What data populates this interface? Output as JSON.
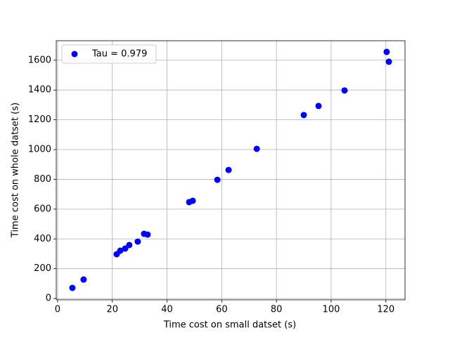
{
  "chart_data": {
    "type": "scatter",
    "xlabel": "Time cost on small datset (s)",
    "ylabel": "Time cost on whole datset (s)",
    "series": [
      {
        "name": "Tau = 0.979",
        "color": "#0000ff",
        "x": [
          5.4,
          9.5,
          21.6,
          22.9,
          24.7,
          26.2,
          29.3,
          31.6,
          32.9,
          48.1,
          49.4,
          58.4,
          62.5,
          72.8,
          90.0,
          95.4,
          104.9,
          120.3,
          121.1
        ],
        "values": [
          71,
          127,
          297,
          321,
          335,
          359,
          382,
          434,
          429,
          647,
          656,
          797,
          863,
          1005,
          1232,
          1293,
          1397,
          1656,
          1590
        ]
      }
    ],
    "xlim": [
      -0.5,
      127
    ],
    "ylim": [
      -9,
      1731
    ],
    "xticks": [
      0,
      20,
      40,
      60,
      80,
      100,
      120
    ],
    "yticks": [
      0,
      200,
      400,
      600,
      800,
      1000,
      1200,
      1400,
      1600
    ],
    "grid": true,
    "legend": "upper-left"
  }
}
